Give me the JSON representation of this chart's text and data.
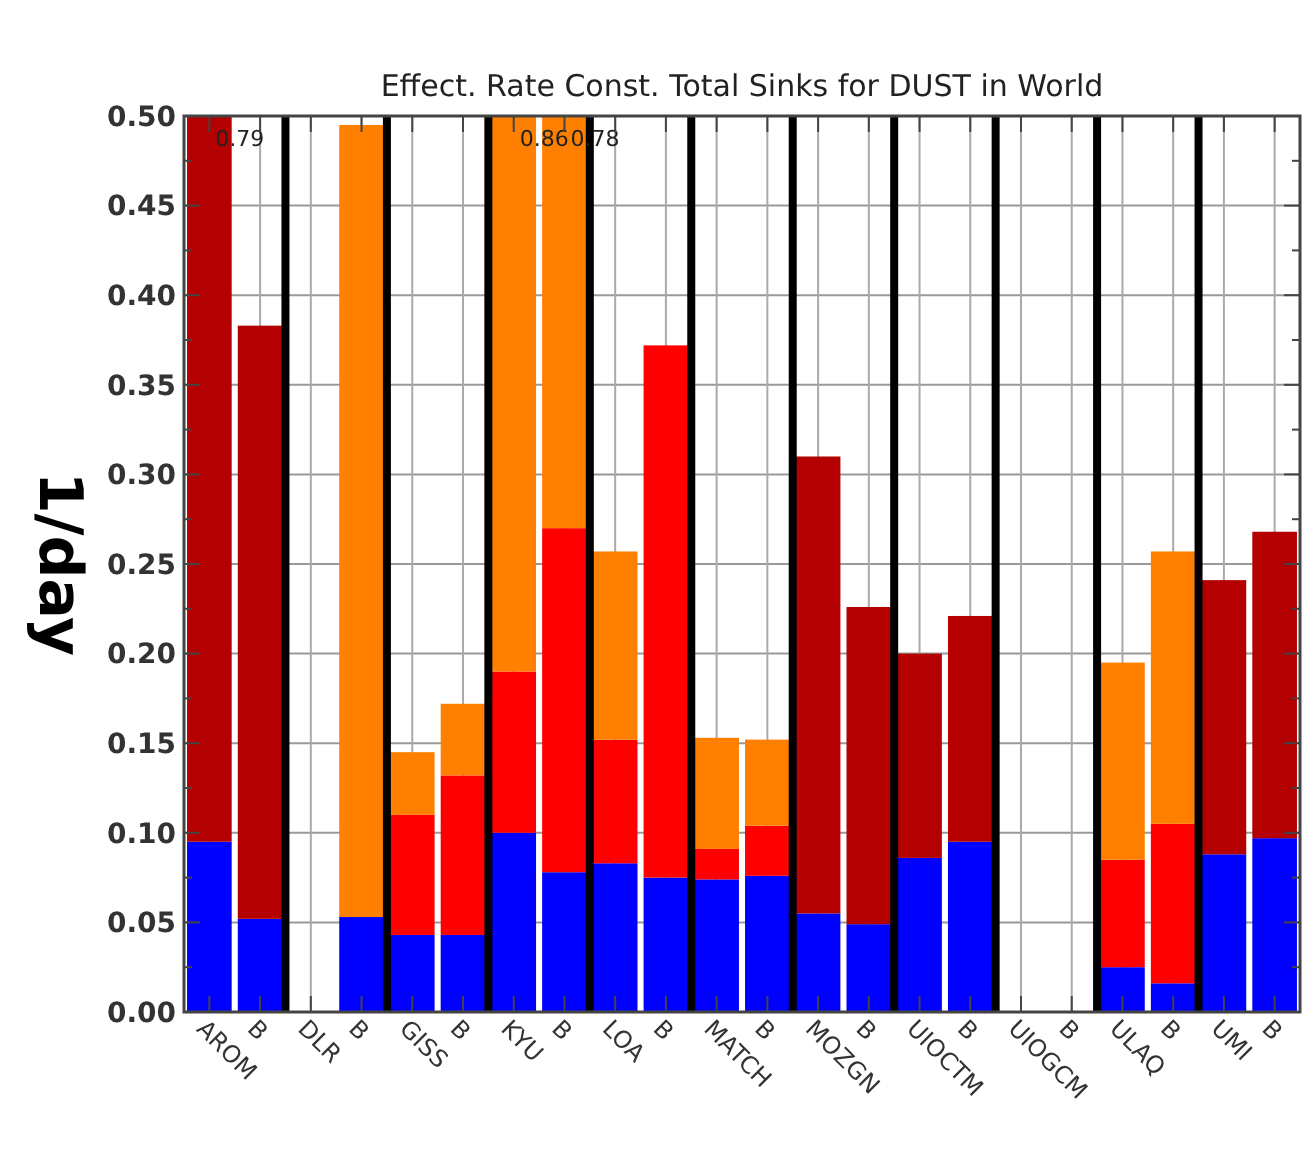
{
  "chart_data": {
    "type": "bar",
    "title": "Effect. Rate Const. Total Sinks for DUST in World",
    "ylabel": "1/day",
    "categories": [
      "AROM",
      "B",
      "DLR",
      "B",
      "GISS",
      "B",
      "KYU",
      "B",
      "LOA",
      "B",
      "MATCH",
      "B",
      "MOZGN",
      "B",
      "UIOCTM",
      "B",
      "UIOGCM",
      "B",
      "ULAQ",
      "B",
      "UMI",
      "B"
    ],
    "stacked": true,
    "series": [
      {
        "color": "#0000ff",
        "values": [
          0.095,
          0.052,
          null,
          0.053,
          0.043,
          0.043,
          0.1,
          0.078,
          0.083,
          0.075,
          0.074,
          0.076,
          0.055,
          0.049,
          0.086,
          0.095,
          null,
          null,
          0.025,
          0.016,
          0.088,
          0.097
        ]
      },
      {
        "color": "#ff0000",
        "values": [
          null,
          null,
          null,
          null,
          0.067,
          0.089,
          0.09,
          0.192,
          0.069,
          0.297,
          0.017,
          0.028,
          null,
          null,
          null,
          null,
          null,
          null,
          0.06,
          0.089,
          null,
          null
        ]
      },
      {
        "color": "#b40000",
        "values": [
          0.405,
          0.331,
          null,
          null,
          null,
          null,
          null,
          null,
          null,
          null,
          null,
          null,
          0.255,
          0.177,
          0.114,
          0.126,
          null,
          null,
          null,
          null,
          0.153,
          0.171
        ]
      },
      {
        "color": "#ff8000",
        "values": [
          null,
          null,
          null,
          0.442,
          0.035,
          0.04,
          0.31,
          0.23,
          0.105,
          null,
          0.062,
          0.048,
          null,
          null,
          null,
          null,
          null,
          null,
          0.11,
          0.152,
          null,
          null
        ]
      }
    ],
    "annotations": [
      "0.79",
      "0.86",
      "0.78"
    ],
    "ylim": [
      0,
      0.5
    ],
    "yticks": [
      {
        "value": 0,
        "label": "0.00"
      },
      {
        "value": 0.05,
        "label": "0.05"
      },
      {
        "value": 0.1,
        "label": "0.10"
      },
      {
        "value": 0.15,
        "label": "0.15"
      },
      {
        "value": 0.2,
        "label": "0.20"
      },
      {
        "value": 0.25,
        "label": "0.25"
      },
      {
        "value": 0.3,
        "label": "0.30"
      },
      {
        "value": 0.35,
        "label": "0.35"
      },
      {
        "value": 0.4,
        "label": "0.40"
      },
      {
        "value": 0.45,
        "label": "0.45"
      },
      {
        "value": 0.5,
        "label": "0.50"
      }
    ],
    "grid": true
  }
}
